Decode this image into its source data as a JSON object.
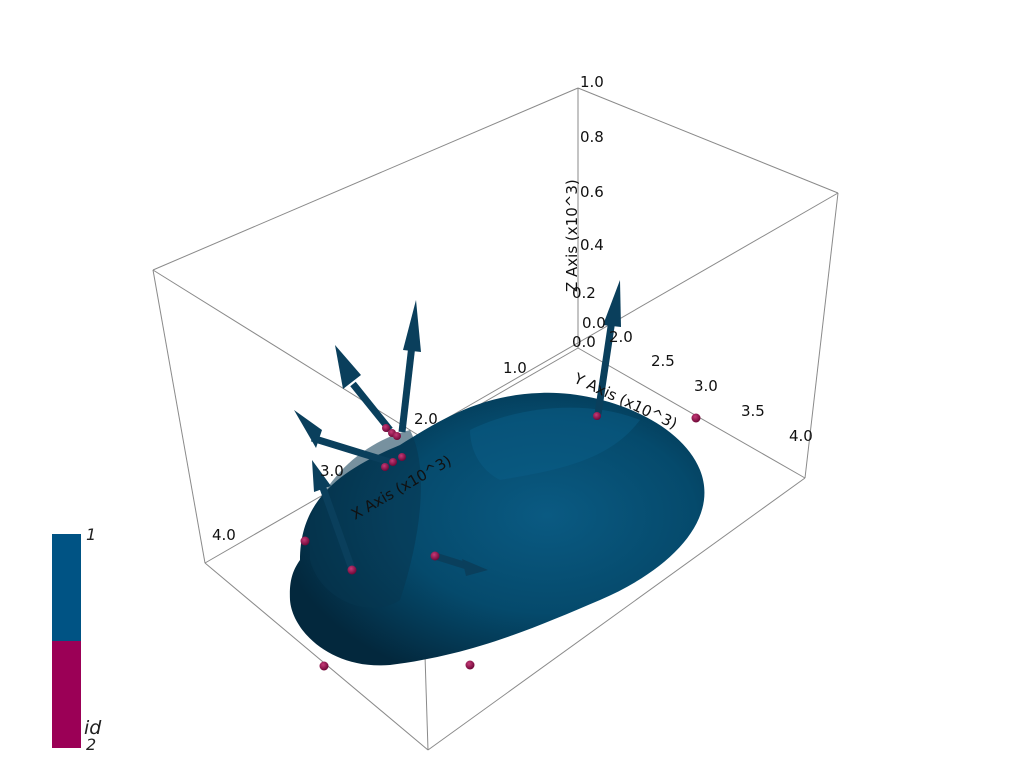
{
  "scene": {
    "axes": {
      "x": {
        "title": "X Axis (x10^3)",
        "ticks": [
          "1.0",
          "2.0",
          "3.0",
          "4.0"
        ]
      },
      "y": {
        "title": "Y Axis (x10^3)",
        "ticks": [
          "2.0",
          "2.5",
          "3.0",
          "3.5",
          "4.0"
        ]
      },
      "z": {
        "title": "Z Axis (x10^3)",
        "ticks": [
          "0.0",
          "0.2",
          "0.4",
          "0.6",
          "0.8",
          "1.0"
        ]
      },
      "origin_labels": [
        "0.0",
        "0.0"
      ]
    },
    "legend": {
      "title": "id",
      "max_label": "1",
      "min_label": "2",
      "colors": {
        "top": "#005384",
        "bottom": "#9b0056"
      }
    },
    "colors": {
      "surface": "#054a6c",
      "arrow": "#0a3f5c",
      "point": "#8e0d48",
      "box": "#8a8a8a"
    }
  }
}
